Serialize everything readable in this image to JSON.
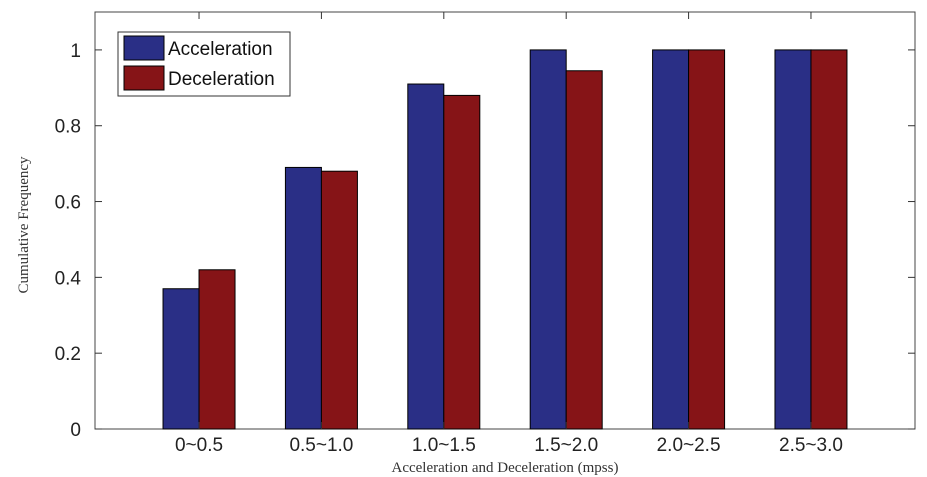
{
  "chart_data": {
    "type": "bar",
    "categories": [
      "0~0.5",
      "0.5~1.0",
      "1.0~1.5",
      "1.5~2.0",
      "2.0~2.5",
      "2.5~3.0"
    ],
    "series": [
      {
        "name": "Acceleration",
        "color": "#2a2f86",
        "values": [
          0.37,
          0.69,
          0.91,
          1.0,
          1.0,
          1.0
        ]
      },
      {
        "name": "Deceleration",
        "color": "#861417",
        "values": [
          0.42,
          0.68,
          0.88,
          0.945,
          1.0,
          1.0
        ]
      }
    ],
    "title": "",
    "xlabel": "Acceleration and Deceleration (mpss)",
    "ylabel": "Cumulative Frequency",
    "ylim": [
      0,
      1.1
    ],
    "yticks": [
      "0",
      "0.2",
      "0.4",
      "0.6",
      "0.8",
      "1"
    ],
    "grid": false,
    "legend_position": "top-left"
  }
}
